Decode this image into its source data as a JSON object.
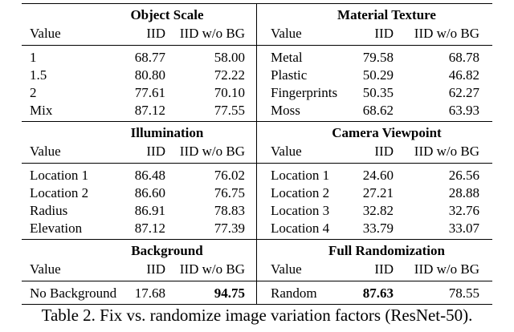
{
  "table": {
    "sections": [
      {
        "left": {
          "title": "Object Scale",
          "columns": [
            "Value",
            "IID",
            "IID w/o BG"
          ],
          "rows": [
            {
              "value": "1",
              "iid": "68.77",
              "wo": "58.00"
            },
            {
              "value": "1.5",
              "iid": "80.80",
              "wo": "72.22"
            },
            {
              "value": "2",
              "iid": "77.61",
              "wo": "70.10"
            },
            {
              "value": "Mix",
              "iid": "87.12",
              "wo": "77.55"
            }
          ]
        },
        "right": {
          "title": "Material Texture",
          "columns": [
            "Value",
            "IID",
            "IID w/o BG"
          ],
          "rows": [
            {
              "value": "Metal",
              "iid": "79.58",
              "wo": "68.78"
            },
            {
              "value": "Plastic",
              "iid": "50.29",
              "wo": "46.82"
            },
            {
              "value": "Fingerprints",
              "iid": "50.35",
              "wo": "62.27"
            },
            {
              "value": "Moss",
              "iid": "68.62",
              "wo": "63.93"
            }
          ]
        }
      },
      {
        "left": {
          "title": "Illumination",
          "columns": [
            "Value",
            "IID",
            "IID w/o BG"
          ],
          "rows": [
            {
              "value": "Location 1",
              "iid": "86.48",
              "wo": "76.02"
            },
            {
              "value": "Location 2",
              "iid": "86.60",
              "wo": "76.75"
            },
            {
              "value": "Radius",
              "iid": "86.91",
              "wo": "78.83"
            },
            {
              "value": "Elevation",
              "iid": "87.12",
              "wo": "77.39"
            }
          ]
        },
        "right": {
          "title": "Camera Viewpoint",
          "columns": [
            "Value",
            "IID",
            "IID w/o BG"
          ],
          "rows": [
            {
              "value": "Location 1",
              "iid": "24.60",
              "wo": "26.56"
            },
            {
              "value": "Location 2",
              "iid": "27.21",
              "wo": "28.88"
            },
            {
              "value": "Location 3",
              "iid": "32.82",
              "wo": "32.76"
            },
            {
              "value": "Location 4",
              "iid": "33.79",
              "wo": "33.07"
            }
          ]
        }
      },
      {
        "left": {
          "title": "Background",
          "columns": [
            "Value",
            "IID",
            "IID w/o BG"
          ],
          "rows": [
            {
              "value": "No Background",
              "iid": "17.68",
              "wo": "94.75",
              "bold": "wo"
            }
          ]
        },
        "right": {
          "title": "Full Randomization",
          "columns": [
            "Value",
            "IID",
            "IID w/o BG"
          ],
          "rows": [
            {
              "value": "Random",
              "iid": "87.63",
              "wo": "78.55",
              "bold": "iid"
            }
          ]
        }
      }
    ]
  },
  "caption": "Table 2. Fix vs. randomize image variation factors (ResNet-50)."
}
